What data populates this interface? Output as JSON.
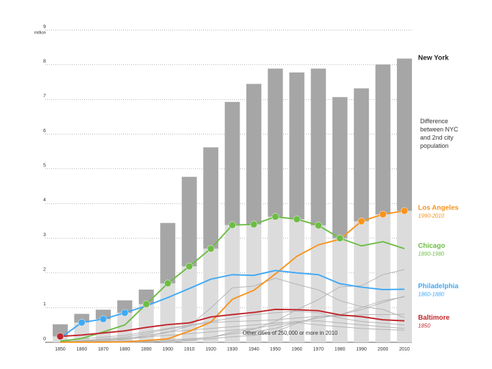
{
  "chart_data": {
    "type": "bar-line",
    "ylim": [
      0,
      9
    ],
    "yticks": [
      0,
      1,
      2,
      3,
      4,
      5,
      6,
      7,
      8,
      9
    ],
    "y_unit": "million",
    "grid": true,
    "categories": [
      "1850",
      "1860",
      "1870",
      "1880",
      "1890",
      "1900",
      "1910",
      "1920",
      "1930",
      "1940",
      "1950",
      "1960",
      "1970",
      "1980",
      "1990",
      "2000",
      "2010"
    ],
    "bars": {
      "name": "New York",
      "color": "#a6a6a6",
      "values": [
        0.52,
        0.82,
        0.94,
        1.21,
        1.52,
        3.44,
        4.77,
        5.62,
        6.93,
        7.45,
        7.89,
        7.78,
        7.89,
        7.07,
        7.32,
        8.01,
        8.18
      ]
    },
    "difference_label": "Difference between NYC and 2nd city population",
    "series": [
      {
        "name": "Los Angeles",
        "period": "1990-2010",
        "color": "#f7941d",
        "values": [
          0.002,
          0.004,
          0.006,
          0.011,
          0.05,
          0.1,
          0.32,
          0.58,
          1.24,
          1.5,
          1.97,
          2.48,
          2.81,
          2.97,
          3.49,
          3.69,
          3.79
        ]
      },
      {
        "name": "Chicago",
        "period": "1890-1980",
        "color": "#6dbd45",
        "values": [
          0.03,
          0.11,
          0.3,
          0.5,
          1.1,
          1.7,
          2.19,
          2.7,
          3.38,
          3.4,
          3.62,
          3.55,
          3.37,
          3.0,
          2.78,
          2.9,
          2.7
        ]
      },
      {
        "name": "Philadelphia",
        "period": "1860-1880",
        "color": "#3fa9f5",
        "values": [
          0.12,
          0.57,
          0.67,
          0.85,
          1.05,
          1.29,
          1.55,
          1.82,
          1.95,
          1.93,
          2.07,
          2.0,
          1.95,
          1.69,
          1.59,
          1.52,
          1.53
        ]
      },
      {
        "name": "Baltimore",
        "period": "1850",
        "color": "#c1272d",
        "values": [
          0.17,
          0.21,
          0.27,
          0.33,
          0.43,
          0.51,
          0.56,
          0.73,
          0.8,
          0.86,
          0.95,
          0.94,
          0.91,
          0.79,
          0.74,
          0.65,
          0.62
        ]
      }
    ],
    "other_cities": {
      "label": "Other cities of 250,000 or more in 2010",
      "color": "#b3b3b3",
      "lines": [
        [
          0.05,
          0.1,
          0.15,
          0.2,
          0.3,
          0.4,
          0.5,
          0.6,
          0.7,
          0.8,
          0.85,
          0.9,
          0.85,
          0.7,
          0.6,
          0.55,
          0.5
        ],
        [
          0.02,
          0.05,
          0.1,
          0.15,
          0.25,
          0.38,
          0.47,
          0.57,
          0.6,
          0.62,
          0.65,
          0.7,
          0.75,
          0.75,
          0.8,
          0.8,
          0.81
        ],
        [
          0.01,
          0.02,
          0.04,
          0.08,
          0.15,
          0.29,
          0.47,
          0.99,
          1.57,
          1.62,
          1.85,
          1.67,
          1.51,
          1.2,
          1.03,
          0.95,
          0.71
        ],
        [
          0.0,
          0.01,
          0.02,
          0.04,
          0.05,
          0.08,
          0.1,
          0.14,
          0.29,
          0.38,
          0.6,
          0.94,
          1.23,
          1.6,
          1.63,
          1.95,
          2.1
        ],
        [
          0.0,
          0.0,
          0.0,
          0.01,
          0.03,
          0.04,
          0.08,
          0.14,
          0.25,
          0.3,
          0.4,
          0.58,
          0.7,
          0.79,
          1.0,
          1.2,
          1.31
        ],
        [
          0.01,
          0.03,
          0.05,
          0.1,
          0.2,
          0.3,
          0.35,
          0.4,
          0.45,
          0.5,
          0.55,
          0.6,
          0.62,
          0.56,
          0.5,
          0.45,
          0.4
        ],
        [
          0.0,
          0.0,
          0.0,
          0.0,
          0.01,
          0.02,
          0.05,
          0.1,
          0.16,
          0.2,
          0.3,
          0.55,
          0.74,
          0.79,
          0.94,
          1.15,
          1.33
        ],
        [
          0.02,
          0.04,
          0.08,
          0.12,
          0.16,
          0.2,
          0.25,
          0.3,
          0.35,
          0.4,
          0.5,
          0.57,
          0.5,
          0.45,
          0.4,
          0.37,
          0.35
        ]
      ]
    }
  }
}
